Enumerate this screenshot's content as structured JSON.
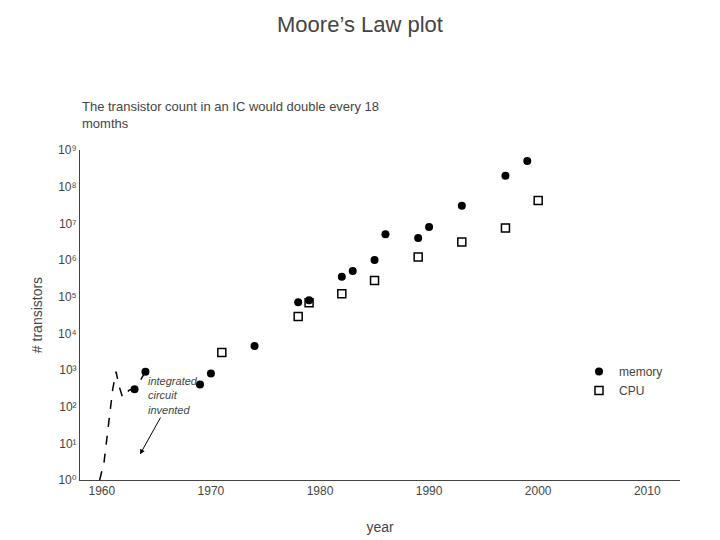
{
  "chart_data": {
    "type": "scatter",
    "title": "Moore’s Law plot",
    "subtitle": "The transistor count in an IC would double every 18\nmomths",
    "xlabel": "year",
    "ylabel": "# transistors",
    "xlim": [
      1958,
      2013
    ],
    "xticks": [
      1960,
      1970,
      1980,
      1990,
      2000,
      2010
    ],
    "ylim": [
      1,
      1000000000
    ],
    "yticks": [
      {
        "value": 1,
        "label": "10⁰"
      },
      {
        "value": 10,
        "label": "10¹"
      },
      {
        "value": 100,
        "label": "10²"
      },
      {
        "value": 1000,
        "label": "10³"
      },
      {
        "value": 10000,
        "label": "10⁴"
      },
      {
        "value": 100000,
        "label": "10⁵"
      },
      {
        "value": 1000000,
        "label": "10⁶"
      },
      {
        "value": 10000000,
        "label": "10⁷"
      },
      {
        "value": 100000000,
        "label": "10⁸"
      },
      {
        "value": 1000000000,
        "label": "10⁹"
      }
    ],
    "log": "y",
    "grid": false,
    "legend": "lower right",
    "series": [
      {
        "type": "line",
        "line_style": "dashed",
        "color": "#000000",
        "x": [
          1959.8,
          1960.2,
          1960.6,
          1961.0,
          1961.3,
          1961.6,
          1961.9,
          1962.2,
          1962.5,
          1962.8,
          1963.1,
          1963.5,
          1964.0
        ],
        "values": [
          1.0,
          3.0,
          30,
          300,
          900,
          350,
          180,
          220,
          280,
          300,
          350,
          500,
          900
        ]
      },
      {
        "name": "memory",
        "type": "scatter",
        "marker": "circle",
        "color": "#000000",
        "x": [
          1963,
          1964,
          1969,
          1970,
          1974,
          1978,
          1979,
          1982,
          1983,
          1985,
          1986,
          1989,
          1990,
          1993,
          1997,
          1999
        ],
        "values": [
          300,
          900,
          400,
          800,
          4500,
          70000,
          80000,
          350000,
          500000,
          1000000,
          5000000,
          4000000,
          8000000,
          30000000,
          200000000,
          500000000
        ]
      },
      {
        "name": "CPU",
        "type": "scatter",
        "marker": "square-open",
        "color": "#000000",
        "x": [
          1971,
          1978,
          1979,
          1982,
          1985,
          1989,
          1993,
          1997,
          2000
        ],
        "values": [
          3000,
          29000,
          68000,
          120000,
          275000,
          1200000,
          3100000,
          7500000,
          42000000
        ]
      }
    ],
    "annotations": [
      {
        "text": "integrated\ncircuit\ninvented",
        "x": 1966.5,
        "y": 200,
        "arrow_x": 1963.5,
        "arrow_y": 5
      }
    ]
  }
}
